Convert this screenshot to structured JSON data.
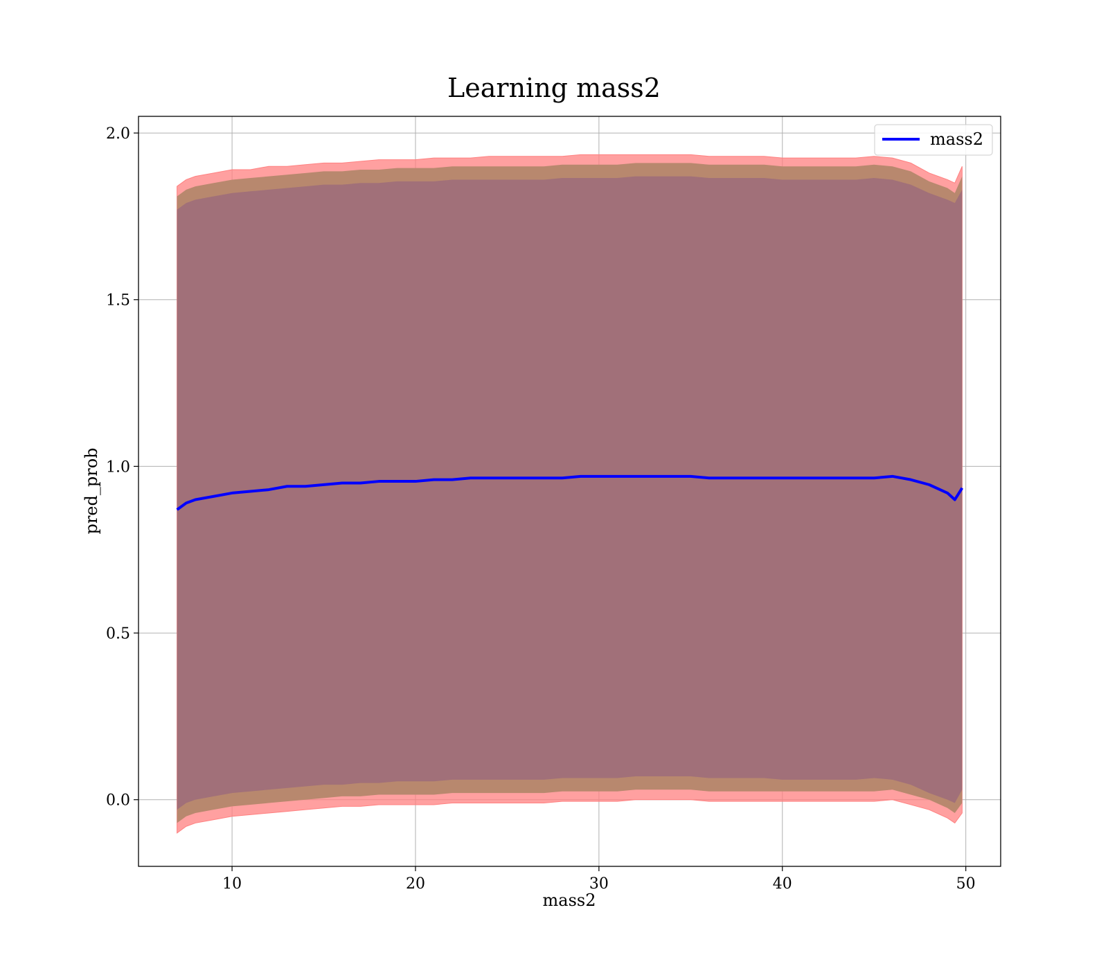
{
  "chart_data": {
    "type": "line",
    "title": "Learning mass2",
    "xlabel": "mass2",
    "ylabel": "pred_prob",
    "xlim": [
      4.9,
      51.9
    ],
    "ylim": [
      -0.2,
      2.05
    ],
    "xticks": [
      10,
      20,
      30,
      40,
      50
    ],
    "yticks": [
      0.0,
      0.5,
      1.0,
      1.5,
      2.0
    ],
    "xtick_labels": [
      "10",
      "20",
      "30",
      "40",
      "50"
    ],
    "ytick_labels": [
      "0.0",
      "0.5",
      "1.0",
      "1.5",
      "2.0"
    ],
    "grid": true,
    "legend": {
      "position": "top-right",
      "entries": [
        "mass2"
      ]
    },
    "colors": {
      "line": "#0000ff",
      "outer_band": "#ff8080",
      "middle_band": "#b8886e",
      "inner_band": "#a17079",
      "grid": "#b0b0b0"
    },
    "series": [
      {
        "name": "mass2",
        "x": [
          7.0,
          7.5,
          8.0,
          9.0,
          10.0,
          11.0,
          12.0,
          13.0,
          14.0,
          15.0,
          16.0,
          17.0,
          18.0,
          19.0,
          20.0,
          21.0,
          22.0,
          23.0,
          24.0,
          25.0,
          26.0,
          27.0,
          28.0,
          29.0,
          30.0,
          31.0,
          32.0,
          33.0,
          34.0,
          35.0,
          36.0,
          37.0,
          38.0,
          39.0,
          40.0,
          41.0,
          42.0,
          43.0,
          44.0,
          45.0,
          46.0,
          47.0,
          48.0,
          49.0,
          49.4,
          49.8
        ],
        "y": [
          0.87,
          0.89,
          0.9,
          0.91,
          0.92,
          0.925,
          0.93,
          0.94,
          0.94,
          0.945,
          0.95,
          0.95,
          0.955,
          0.955,
          0.955,
          0.96,
          0.96,
          0.965,
          0.965,
          0.965,
          0.965,
          0.965,
          0.965,
          0.97,
          0.97,
          0.97,
          0.97,
          0.97,
          0.97,
          0.97,
          0.965,
          0.965,
          0.965,
          0.965,
          0.965,
          0.965,
          0.965,
          0.965,
          0.965,
          0.965,
          0.97,
          0.96,
          0.945,
          0.92,
          0.9,
          0.935
        ],
        "band_outer_upper": [
          1.84,
          1.86,
          1.87,
          1.88,
          1.89,
          1.89,
          1.9,
          1.9,
          1.905,
          1.91,
          1.91,
          1.915,
          1.92,
          1.92,
          1.92,
          1.925,
          1.925,
          1.925,
          1.93,
          1.93,
          1.93,
          1.93,
          1.93,
          1.935,
          1.935,
          1.935,
          1.935,
          1.935,
          1.935,
          1.935,
          1.93,
          1.93,
          1.93,
          1.93,
          1.925,
          1.925,
          1.925,
          1.925,
          1.925,
          1.93,
          1.925,
          1.91,
          1.88,
          1.86,
          1.85,
          1.9
        ],
        "band_outer_lower": [
          -0.1,
          -0.08,
          -0.07,
          -0.06,
          -0.05,
          -0.045,
          -0.04,
          -0.035,
          -0.03,
          -0.025,
          -0.02,
          -0.02,
          -0.015,
          -0.015,
          -0.015,
          -0.015,
          -0.01,
          -0.01,
          -0.01,
          -0.01,
          -0.01,
          -0.01,
          -0.005,
          -0.005,
          -0.005,
          -0.005,
          0.0,
          0.0,
          0.0,
          0.0,
          -0.005,
          -0.005,
          -0.005,
          -0.005,
          -0.005,
          -0.005,
          -0.005,
          -0.005,
          -0.005,
          -0.005,
          0.0,
          -0.015,
          -0.03,
          -0.055,
          -0.07,
          -0.04
        ],
        "band_middle_upper": [
          1.81,
          1.83,
          1.84,
          1.85,
          1.86,
          1.865,
          1.87,
          1.875,
          1.88,
          1.885,
          1.885,
          1.89,
          1.89,
          1.895,
          1.895,
          1.895,
          1.9,
          1.9,
          1.9,
          1.9,
          1.9,
          1.9,
          1.905,
          1.905,
          1.905,
          1.905,
          1.91,
          1.91,
          1.91,
          1.91,
          1.905,
          1.905,
          1.905,
          1.905,
          1.9,
          1.9,
          1.9,
          1.9,
          1.9,
          1.905,
          1.9,
          1.885,
          1.855,
          1.835,
          1.82,
          1.87
        ],
        "band_middle_lower": [
          -0.07,
          -0.05,
          -0.04,
          -0.03,
          -0.02,
          -0.015,
          -0.01,
          -0.005,
          0.0,
          0.005,
          0.01,
          0.01,
          0.015,
          0.015,
          0.015,
          0.015,
          0.02,
          0.02,
          0.02,
          0.02,
          0.02,
          0.02,
          0.025,
          0.025,
          0.025,
          0.025,
          0.03,
          0.03,
          0.03,
          0.03,
          0.025,
          0.025,
          0.025,
          0.025,
          0.025,
          0.025,
          0.025,
          0.025,
          0.025,
          0.025,
          0.03,
          0.015,
          0.0,
          -0.025,
          -0.04,
          -0.01
        ],
        "band_inner_upper": [
          1.77,
          1.79,
          1.8,
          1.81,
          1.82,
          1.825,
          1.83,
          1.835,
          1.84,
          1.845,
          1.845,
          1.85,
          1.85,
          1.855,
          1.855,
          1.855,
          1.86,
          1.86,
          1.86,
          1.86,
          1.86,
          1.86,
          1.865,
          1.865,
          1.865,
          1.865,
          1.87,
          1.87,
          1.87,
          1.87,
          1.865,
          1.865,
          1.865,
          1.865,
          1.86,
          1.86,
          1.86,
          1.86,
          1.86,
          1.865,
          1.86,
          1.845,
          1.82,
          1.8,
          1.79,
          1.83
        ],
        "band_inner_lower": [
          -0.03,
          -0.01,
          0.0,
          0.01,
          0.02,
          0.025,
          0.03,
          0.035,
          0.04,
          0.045,
          0.045,
          0.05,
          0.05,
          0.055,
          0.055,
          0.055,
          0.06,
          0.06,
          0.06,
          0.06,
          0.06,
          0.06,
          0.065,
          0.065,
          0.065,
          0.065,
          0.07,
          0.07,
          0.07,
          0.07,
          0.065,
          0.065,
          0.065,
          0.065,
          0.06,
          0.06,
          0.06,
          0.06,
          0.06,
          0.065,
          0.06,
          0.045,
          0.02,
          0.0,
          -0.01,
          0.03
        ]
      }
    ]
  }
}
